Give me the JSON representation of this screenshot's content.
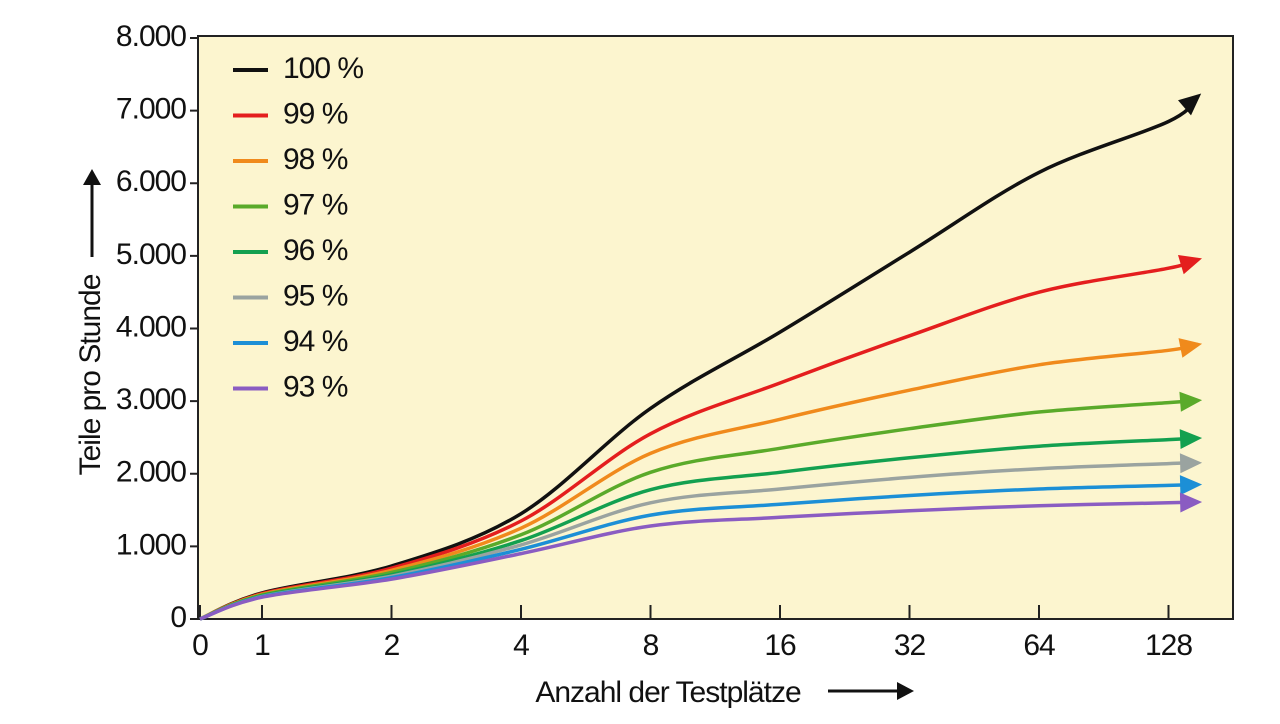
{
  "chart_data": {
    "type": "line",
    "xlabel": "Anzahl der Testplätze",
    "ylabel": "Teile pro Stunde",
    "x_scale": "log2",
    "x_ticks": [
      {
        "value": 0,
        "label": "0"
      },
      {
        "value": 1,
        "label": "1"
      },
      {
        "value": 2,
        "label": "2"
      },
      {
        "value": 4,
        "label": "4"
      },
      {
        "value": 8,
        "label": "8"
      },
      {
        "value": 16,
        "label": "16"
      },
      {
        "value": 32,
        "label": "32"
      },
      {
        "value": 64,
        "label": "64"
      },
      {
        "value": 128,
        "label": "128"
      }
    ],
    "y_ticks": [
      {
        "value": 0,
        "label": "0"
      },
      {
        "value": 1000,
        "label": "1.000"
      },
      {
        "value": 2000,
        "label": "2.000"
      },
      {
        "value": 3000,
        "label": "3.000"
      },
      {
        "value": 4000,
        "label": "4.000"
      },
      {
        "value": 5000,
        "label": "5.000"
      },
      {
        "value": 6000,
        "label": "6.000"
      },
      {
        "value": 7000,
        "label": "7.000"
      },
      {
        "value": 8000,
        "label": "8.000"
      }
    ],
    "ylim": [
      0,
      8000
    ],
    "grid": false,
    "legend_position": "top-left",
    "background_color": "#fcf5cf",
    "x": [
      0,
      1,
      2,
      4,
      8,
      16,
      32,
      64,
      128,
      150
    ],
    "series": [
      {
        "name": "100 %",
        "color": "#111111",
        "values": [
          0,
          360,
          730,
          1450,
          2900,
          3950,
          5050,
          6150,
          6850,
          7200
        ]
      },
      {
        "name": "99 %",
        "color": "#e41e1e",
        "values": [
          0,
          350,
          700,
          1350,
          2550,
          3250,
          3900,
          4500,
          4830,
          4950
        ]
      },
      {
        "name": "98 %",
        "color": "#f08a1c",
        "values": [
          0,
          340,
          670,
          1250,
          2280,
          2750,
          3150,
          3500,
          3700,
          3780
        ]
      },
      {
        "name": "97 %",
        "color": "#5aaa2a",
        "values": [
          0,
          330,
          640,
          1160,
          2020,
          2350,
          2620,
          2850,
          2980,
          3010
        ]
      },
      {
        "name": "96 %",
        "color": "#13a050",
        "values": [
          0,
          320,
          610,
          1080,
          1780,
          2020,
          2220,
          2380,
          2470,
          2490
        ]
      },
      {
        "name": "95 %",
        "color": "#9aa3a0",
        "values": [
          0,
          310,
          590,
          1020,
          1600,
          1790,
          1950,
          2070,
          2140,
          2150
        ]
      },
      {
        "name": "94 %",
        "color": "#1c8fd6",
        "values": [
          0,
          305,
          570,
          960,
          1430,
          1580,
          1700,
          1790,
          1840,
          1850
        ]
      },
      {
        "name": "93 %",
        "color": "#8a5cc2",
        "values": [
          0,
          300,
          550,
          900,
          1280,
          1400,
          1490,
          1560,
          1600,
          1610
        ]
      }
    ]
  }
}
